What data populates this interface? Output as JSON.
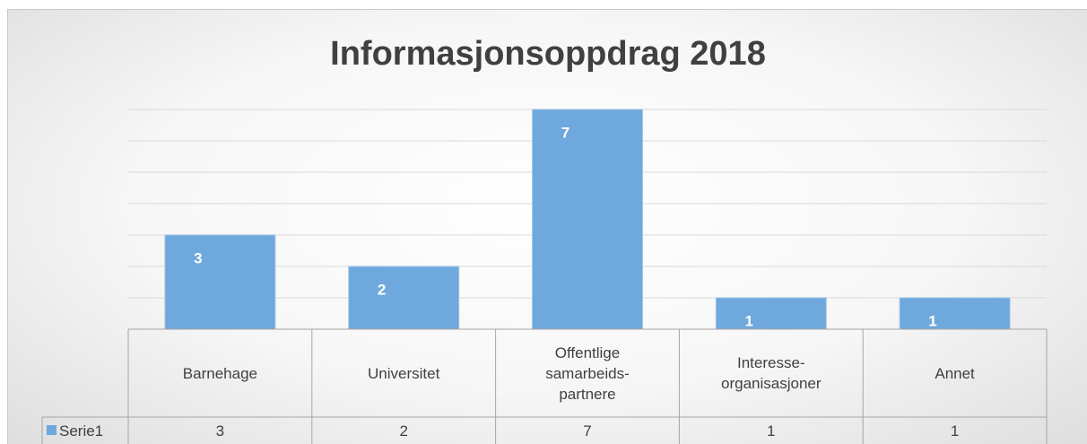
{
  "chart_data": {
    "type": "bar",
    "title": "Informasjonsoppdrag 2018",
    "categories": [
      "Barnehage",
      "Universitet",
      "Offentlige samarbeids-partnere",
      "Interesse-organisasjoner",
      "Annet"
    ],
    "series": [
      {
        "name": "Serie1",
        "color": "#6fa8dc",
        "values": [
          3,
          2,
          7,
          1,
          1
        ]
      }
    ],
    "ylim": [
      0,
      7
    ],
    "yticks": [
      0,
      1,
      2,
      3,
      4,
      5,
      6,
      7
    ],
    "grid": true,
    "data_table": true
  }
}
